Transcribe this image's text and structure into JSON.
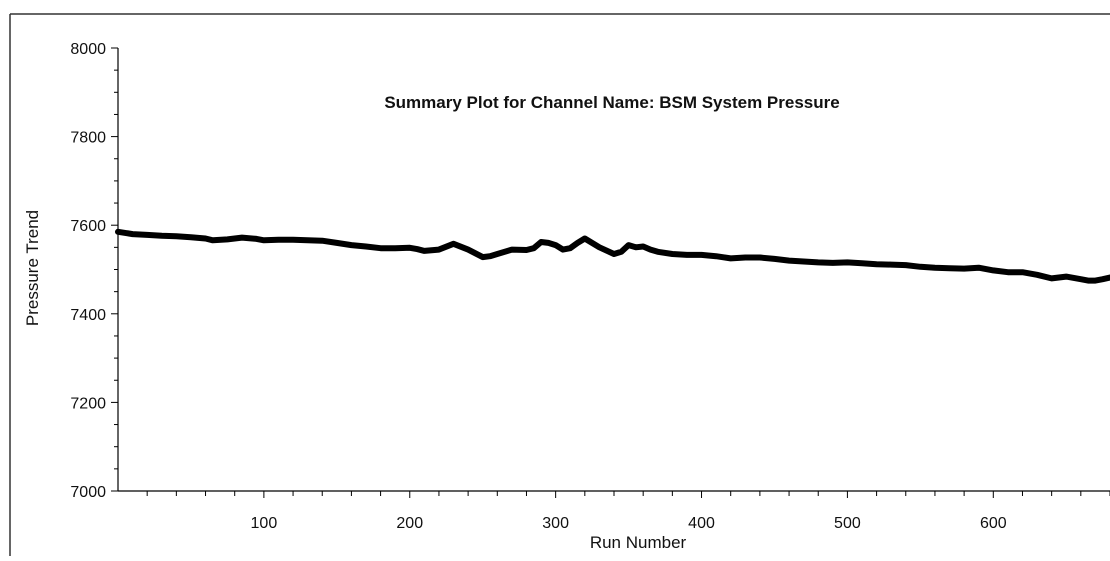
{
  "chart_data": {
    "type": "line",
    "title": "Summary Plot for Channel Name: BSM System Pressure",
    "xlabel": "Run Number",
    "ylabel": "Pressure Trend",
    "xlim": [
      0,
      680
    ],
    "ylim": [
      7000,
      8000
    ],
    "x_ticks": [
      100,
      200,
      300,
      400,
      500,
      600
    ],
    "y_ticks": [
      7000,
      7200,
      7400,
      7600,
      7800,
      8000
    ],
    "grid": false,
    "series": [
      {
        "color": "#000000",
        "x": [
          0,
          10,
          20,
          30,
          40,
          50,
          60,
          65,
          75,
          85,
          95,
          100,
          110,
          120,
          130,
          140,
          150,
          160,
          170,
          180,
          190,
          200,
          205,
          210,
          220,
          230,
          240,
          250,
          255,
          260,
          270,
          280,
          285,
          290,
          295,
          300,
          305,
          310,
          315,
          320,
          330,
          340,
          345,
          350,
          355,
          360,
          365,
          370,
          380,
          390,
          400,
          410,
          420,
          430,
          440,
          450,
          460,
          470,
          480,
          490,
          500,
          510,
          520,
          530,
          540,
          550,
          560,
          570,
          580,
          590,
          600,
          610,
          620,
          630,
          640,
          650,
          660,
          665,
          670,
          675,
          680
        ],
        "y": [
          7585,
          7580,
          7578,
          7576,
          7575,
          7573,
          7570,
          7566,
          7568,
          7572,
          7569,
          7566,
          7567,
          7567,
          7566,
          7565,
          7560,
          7555,
          7552,
          7548,
          7548,
          7549,
          7546,
          7542,
          7545,
          7558,
          7545,
          7528,
          7530,
          7535,
          7545,
          7544,
          7548,
          7562,
          7560,
          7555,
          7545,
          7548,
          7560,
          7570,
          7550,
          7535,
          7540,
          7555,
          7550,
          7552,
          7545,
          7540,
          7535,
          7533,
          7533,
          7530,
          7525,
          7527,
          7527,
          7524,
          7520,
          7518,
          7516,
          7515,
          7516,
          7514,
          7512,
          7511,
          7510,
          7506,
          7504,
          7503,
          7502,
          7504,
          7498,
          7494,
          7494,
          7488,
          7480,
          7484,
          7478,
          7475,
          7475,
          7478,
          7482
        ]
      }
    ]
  }
}
